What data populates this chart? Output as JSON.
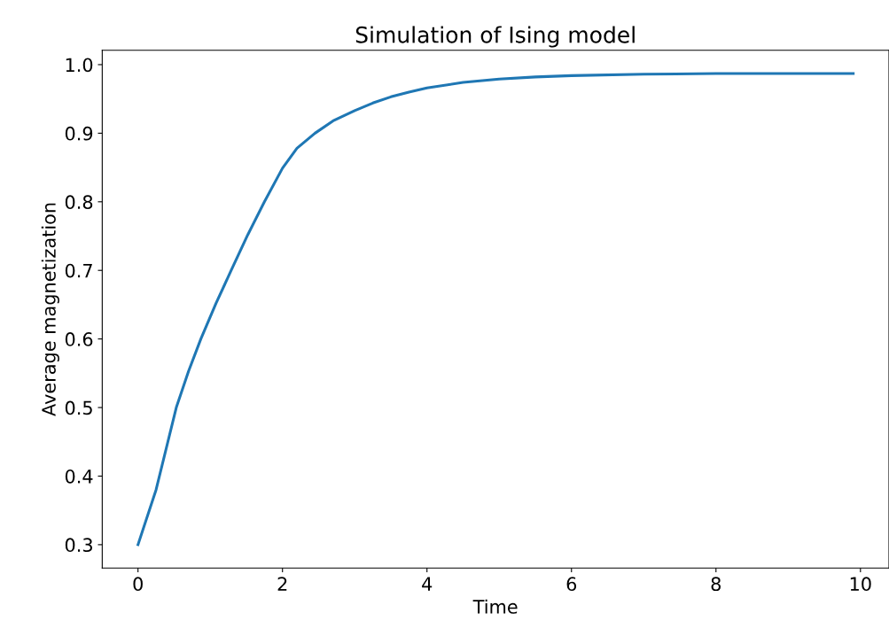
{
  "chart_data": {
    "type": "line",
    "title": "Simulation of Ising model",
    "xlabel": "Time",
    "ylabel": "Average magnetization",
    "x": [
      0,
      0.25,
      0.53,
      0.7,
      0.87,
      1.08,
      1.29,
      1.52,
      1.75,
      2.0,
      2.2,
      2.45,
      2.7,
      3.0,
      3.25,
      3.5,
      3.75,
      4.0,
      4.5,
      5.0,
      5.5,
      6.0,
      7.0,
      8.0,
      9.9
    ],
    "series": [
      {
        "color": "#1f77b4",
        "values": [
          0.3,
          0.38,
          0.5,
          0.553,
          0.6,
          0.652,
          0.7,
          0.752,
          0.8,
          0.849,
          0.878,
          0.9,
          0.918,
          0.933,
          0.944,
          0.953,
          0.96,
          0.966,
          0.974,
          0.979,
          0.982,
          0.984,
          0.986,
          0.987,
          0.987
        ]
      }
    ],
    "xlim": [
      -0.495,
      10.395
    ],
    "ylim": [
      0.266,
      1.021
    ],
    "xticks": [
      0,
      2,
      4,
      6,
      8,
      10
    ],
    "yticks": [
      0.3,
      0.4,
      0.5,
      0.6,
      0.7,
      0.8,
      0.9,
      {
        "value": 1.0,
        "label": "1.0"
      }
    ],
    "grid": false,
    "legend": false,
    "marker": "none",
    "line_style": "solid"
  }
}
